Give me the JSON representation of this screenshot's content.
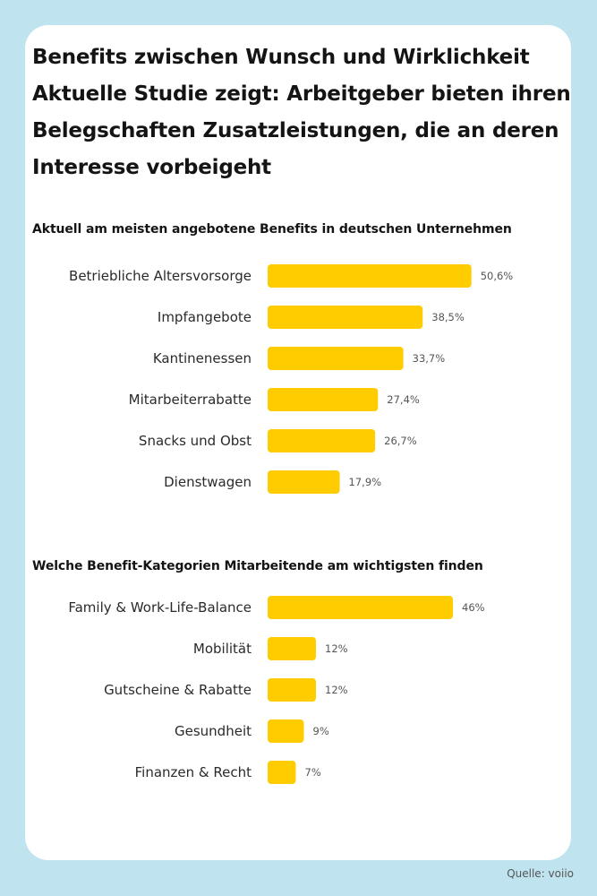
{
  "title_lines": [
    "Benefits zwischen Wunsch und Wirklichkeit",
    "Aktuelle Studie zeigt: Arbeitgeber bieten ihren",
    "Belegschaften Zusatzleistungen, die an deren",
    "Interesse vorbeigeht"
  ],
  "source": "Quelle: voiio",
  "colors": {
    "bar": "#FFCC00",
    "background": "#BFE3EF",
    "card": "#FFFFFF"
  },
  "chart_data": [
    {
      "type": "bar",
      "orientation": "horizontal",
      "title": "Aktuell am meisten angebotene Benefits in deutschen Unternehmen",
      "categories": [
        "Betriebliche Altersvorsorge",
        "Impfangebote",
        "Kantinenessen",
        "Mitarbeiterrabatte",
        "Snacks und Obst",
        "Dienstwagen"
      ],
      "values": [
        50.6,
        38.5,
        33.7,
        27.4,
        26.7,
        17.9
      ],
      "value_labels": [
        "50,6%",
        "38,5%",
        "33,7%",
        "27,4%",
        "26,7%",
        "17,9%"
      ],
      "unit": "%",
      "grid": false
    },
    {
      "type": "bar",
      "orientation": "horizontal",
      "title": "Welche Benefit-Kategorien Mitarbeitende am wichtigsten finden",
      "categories": [
        "Family & Work-Life-Balance",
        "Mobilität",
        "Gutscheine & Rabatte",
        "Gesundheit",
        "Finanzen & Recht"
      ],
      "values": [
        46,
        12,
        12,
        9,
        7
      ],
      "value_labels": [
        "46%",
        "12%",
        "12%",
        "9%",
        "7%"
      ],
      "unit": "%",
      "grid": false
    }
  ]
}
